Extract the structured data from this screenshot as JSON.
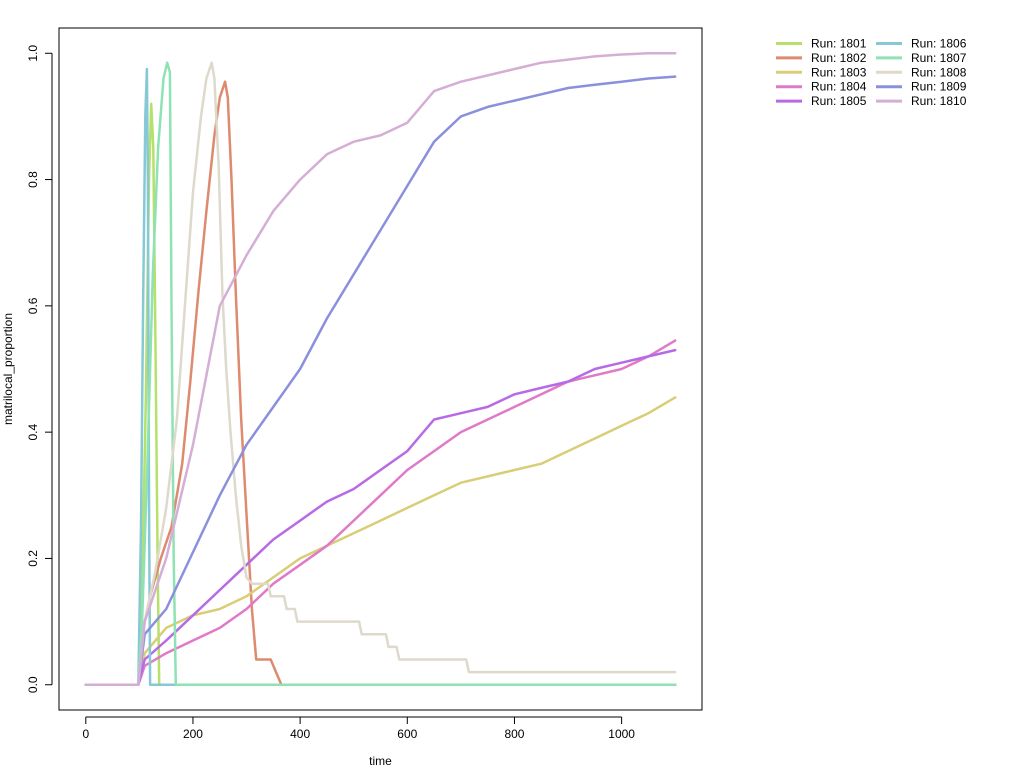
{
  "chart_data": {
    "type": "line",
    "title": "",
    "xlabel": "time",
    "ylabel": "matrilocal_proportion",
    "xlim": [
      -50,
      1150
    ],
    "ylim": [
      -0.04,
      1.04
    ],
    "xticks": [
      0,
      200,
      400,
      600,
      800,
      1000
    ],
    "yticks": [
      0.0,
      0.2,
      0.4,
      0.6,
      0.8,
      1.0
    ],
    "xtick_labels": [
      "0",
      "200",
      "400",
      "600",
      "800",
      "1000"
    ],
    "ytick_labels": [
      "0.0",
      "0.2",
      "0.4",
      "0.6",
      "0.8",
      "1.0"
    ],
    "grid": false,
    "legend_position": "outside top-right, two columns",
    "series": [
      {
        "name": "Run: 1801",
        "color": "#b5e06a",
        "step": false,
        "points": [
          [
            0,
            0
          ],
          [
            98,
            0
          ],
          [
            105,
            0.15
          ],
          [
            112,
            0.45
          ],
          [
            118,
            0.8
          ],
          [
            122,
            0.92
          ],
          [
            126,
            0.85
          ],
          [
            130,
            0.55
          ],
          [
            134,
            0.2
          ],
          [
            137,
            0
          ],
          [
            1100,
            0
          ]
        ]
      },
      {
        "name": "Run: 1802",
        "color": "#dd8a6e",
        "step": false,
        "points": [
          [
            0,
            0
          ],
          [
            98,
            0
          ],
          [
            105,
            0.08
          ],
          [
            120,
            0.14
          ],
          [
            140,
            0.2
          ],
          [
            160,
            0.25
          ],
          [
            180,
            0.35
          ],
          [
            195,
            0.48
          ],
          [
            210,
            0.62
          ],
          [
            225,
            0.75
          ],
          [
            240,
            0.87
          ],
          [
            250,
            0.93
          ],
          [
            260,
            0.955
          ],
          [
            265,
            0.93
          ],
          [
            272,
            0.8
          ],
          [
            280,
            0.62
          ],
          [
            290,
            0.42
          ],
          [
            300,
            0.27
          ],
          [
            310,
            0.12
          ],
          [
            318,
            0.04
          ],
          [
            345,
            0.04
          ],
          [
            355,
            0.02
          ],
          [
            365,
            0
          ],
          [
            1100,
            0
          ]
        ]
      },
      {
        "name": "Run: 1803",
        "color": "#d9cd77",
        "step": false,
        "points": [
          [
            0,
            0
          ],
          [
            98,
            0
          ],
          [
            110,
            0.05
          ],
          [
            150,
            0.09
          ],
          [
            200,
            0.11
          ],
          [
            250,
            0.12
          ],
          [
            300,
            0.14
          ],
          [
            350,
            0.17
          ],
          [
            400,
            0.2
          ],
          [
            450,
            0.22
          ],
          [
            500,
            0.24
          ],
          [
            550,
            0.26
          ],
          [
            600,
            0.28
          ],
          [
            650,
            0.3
          ],
          [
            700,
            0.32
          ],
          [
            750,
            0.33
          ],
          [
            800,
            0.34
          ],
          [
            850,
            0.35
          ],
          [
            900,
            0.37
          ],
          [
            950,
            0.39
          ],
          [
            1000,
            0.41
          ],
          [
            1050,
            0.43
          ],
          [
            1100,
            0.455
          ]
        ]
      },
      {
        "name": "Run: 1804",
        "color": "#df7ac8",
        "step": false,
        "points": [
          [
            0,
            0
          ],
          [
            98,
            0
          ],
          [
            110,
            0.03
          ],
          [
            150,
            0.05
          ],
          [
            200,
            0.07
          ],
          [
            250,
            0.09
          ],
          [
            300,
            0.12
          ],
          [
            350,
            0.16
          ],
          [
            400,
            0.19
          ],
          [
            450,
            0.22
          ],
          [
            500,
            0.26
          ],
          [
            550,
            0.3
          ],
          [
            600,
            0.34
          ],
          [
            650,
            0.37
          ],
          [
            700,
            0.4
          ],
          [
            750,
            0.42
          ],
          [
            800,
            0.44
          ],
          [
            850,
            0.46
          ],
          [
            900,
            0.48
          ],
          [
            950,
            0.49
          ],
          [
            1000,
            0.5
          ],
          [
            1050,
            0.52
          ],
          [
            1100,
            0.545
          ]
        ]
      },
      {
        "name": "Run: 1805",
        "color": "#b86ae5",
        "step": false,
        "points": [
          [
            0,
            0
          ],
          [
            98,
            0
          ],
          [
            110,
            0.04
          ],
          [
            150,
            0.07
          ],
          [
            200,
            0.11
          ],
          [
            250,
            0.15
          ],
          [
            300,
            0.19
          ],
          [
            350,
            0.23
          ],
          [
            400,
            0.26
          ],
          [
            450,
            0.29
          ],
          [
            500,
            0.31
          ],
          [
            550,
            0.34
          ],
          [
            600,
            0.37
          ],
          [
            650,
            0.42
          ],
          [
            700,
            0.43
          ],
          [
            750,
            0.44
          ],
          [
            800,
            0.46
          ],
          [
            850,
            0.47
          ],
          [
            900,
            0.48
          ],
          [
            950,
            0.5
          ],
          [
            1000,
            0.51
          ],
          [
            1050,
            0.52
          ],
          [
            1100,
            0.53
          ]
        ]
      },
      {
        "name": "Run: 1806",
        "color": "#86c8d6",
        "step": false,
        "points": [
          [
            0,
            0
          ],
          [
            98,
            0
          ],
          [
            103,
            0.25
          ],
          [
            107,
            0.6
          ],
          [
            111,
            0.9
          ],
          [
            114,
            0.975
          ],
          [
            116,
            0.8
          ],
          [
            118,
            0.3
          ],
          [
            120,
            0
          ],
          [
            1100,
            0
          ]
        ]
      },
      {
        "name": "Run: 1807",
        "color": "#8fe2b3",
        "step": false,
        "points": [
          [
            0,
            0
          ],
          [
            98,
            0
          ],
          [
            105,
            0.1
          ],
          [
            115,
            0.35
          ],
          [
            125,
            0.65
          ],
          [
            135,
            0.85
          ],
          [
            145,
            0.96
          ],
          [
            152,
            0.985
          ],
          [
            157,
            0.97
          ],
          [
            160,
            0.6
          ],
          [
            164,
            0.2
          ],
          [
            168,
            0
          ],
          [
            1100,
            0
          ]
        ]
      },
      {
        "name": "Run: 1808",
        "color": "#ddd9cb",
        "step": false,
        "points": [
          [
            0,
            0
          ],
          [
            98,
            0
          ],
          [
            110,
            0.1
          ],
          [
            130,
            0.18
          ],
          [
            150,
            0.28
          ],
          [
            170,
            0.42
          ],
          [
            185,
            0.6
          ],
          [
            200,
            0.78
          ],
          [
            215,
            0.9
          ],
          [
            225,
            0.96
          ],
          [
            235,
            0.985
          ],
          [
            240,
            0.96
          ],
          [
            248,
            0.82
          ],
          [
            255,
            0.62
          ],
          [
            262,
            0.5
          ],
          [
            270,
            0.4
          ],
          [
            280,
            0.3
          ],
          [
            290,
            0.22
          ],
          [
            300,
            0.17
          ],
          [
            310,
            0.16
          ],
          [
            340,
            0.16
          ],
          [
            345,
            0.14
          ],
          [
            370,
            0.14
          ],
          [
            375,
            0.12
          ],
          [
            390,
            0.12
          ],
          [
            395,
            0.1
          ],
          [
            510,
            0.1
          ],
          [
            515,
            0.08
          ],
          [
            560,
            0.08
          ],
          [
            565,
            0.06
          ],
          [
            580,
            0.06
          ],
          [
            585,
            0.04
          ],
          [
            710,
            0.04
          ],
          [
            715,
            0.02
          ],
          [
            1100,
            0.02
          ]
        ]
      },
      {
        "name": "Run: 1809",
        "color": "#8b90dc",
        "step": false,
        "points": [
          [
            0,
            0
          ],
          [
            98,
            0
          ],
          [
            110,
            0.08
          ],
          [
            150,
            0.12
          ],
          [
            200,
            0.21
          ],
          [
            250,
            0.3
          ],
          [
            300,
            0.38
          ],
          [
            350,
            0.44
          ],
          [
            400,
            0.5
          ],
          [
            450,
            0.58
          ],
          [
            500,
            0.65
          ],
          [
            550,
            0.72
          ],
          [
            600,
            0.79
          ],
          [
            650,
            0.86
          ],
          [
            700,
            0.9
          ],
          [
            750,
            0.915
          ],
          [
            800,
            0.925
          ],
          [
            850,
            0.935
          ],
          [
            900,
            0.945
          ],
          [
            950,
            0.95
          ],
          [
            1000,
            0.955
          ],
          [
            1050,
            0.96
          ],
          [
            1100,
            0.963
          ]
        ]
      },
      {
        "name": "Run: 1810",
        "color": "#d5aed6",
        "step": false,
        "points": [
          [
            0,
            0
          ],
          [
            98,
            0
          ],
          [
            110,
            0.1
          ],
          [
            150,
            0.2
          ],
          [
            200,
            0.38
          ],
          [
            250,
            0.6
          ],
          [
            300,
            0.68
          ],
          [
            350,
            0.75
          ],
          [
            400,
            0.8
          ],
          [
            450,
            0.84
          ],
          [
            500,
            0.86
          ],
          [
            550,
            0.87
          ],
          [
            600,
            0.89
          ],
          [
            650,
            0.94
          ],
          [
            700,
            0.955
          ],
          [
            750,
            0.965
          ],
          [
            800,
            0.975
          ],
          [
            850,
            0.985
          ],
          [
            900,
            0.99
          ],
          [
            950,
            0.995
          ],
          [
            1000,
            0.998
          ],
          [
            1050,
            1.0
          ],
          [
            1100,
            1.0
          ]
        ]
      }
    ]
  }
}
